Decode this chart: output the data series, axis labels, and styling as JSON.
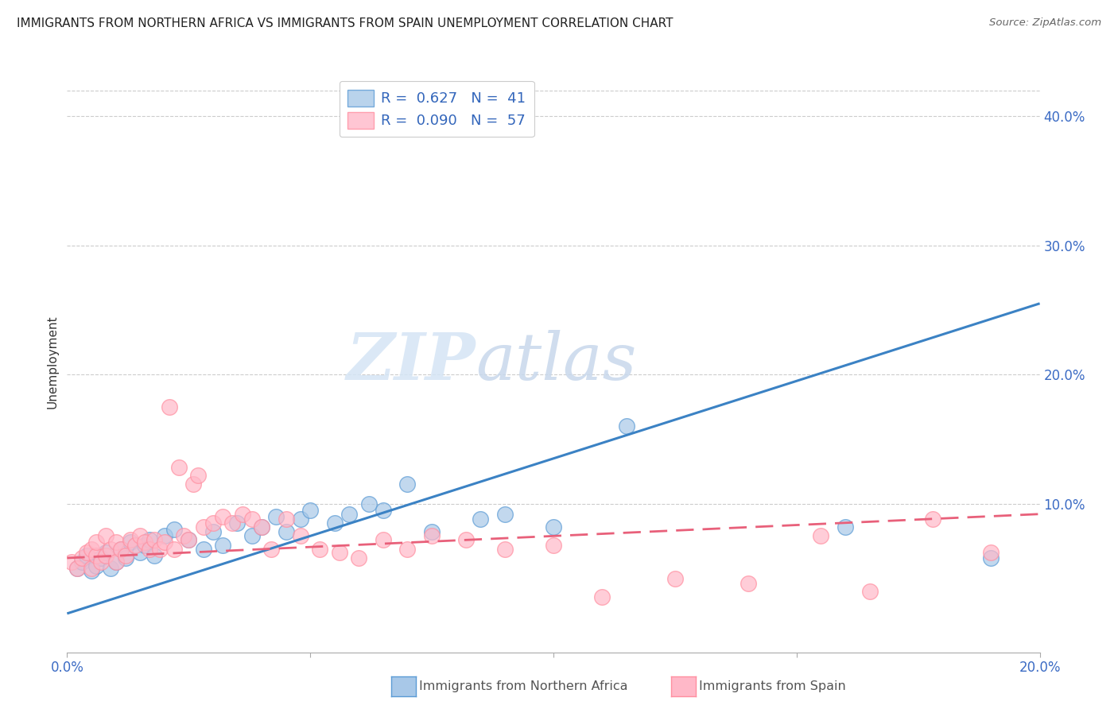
{
  "title": "IMMIGRANTS FROM NORTHERN AFRICA VS IMMIGRANTS FROM SPAIN UNEMPLOYMENT CORRELATION CHART",
  "source": "Source: ZipAtlas.com",
  "ylabel": "Unemployment",
  "yticks": [
    0.0,
    0.1,
    0.2,
    0.3,
    0.4
  ],
  "ytick_labels": [
    "",
    "10.0%",
    "20.0%",
    "30.0%",
    "40.0%"
  ],
  "xlim": [
    0.0,
    0.2
  ],
  "ylim": [
    -0.015,
    0.435
  ],
  "blue_color": "#A8C8E8",
  "pink_color": "#FFB8C8",
  "blue_edge_color": "#5B9BD5",
  "pink_edge_color": "#FF8FA0",
  "blue_line_color": "#3B82C4",
  "pink_line_color": "#E8607A",
  "blue_scatter_x": [
    0.002,
    0.003,
    0.004,
    0.005,
    0.006,
    0.007,
    0.008,
    0.009,
    0.01,
    0.011,
    0.012,
    0.013,
    0.015,
    0.016,
    0.017,
    0.018,
    0.02,
    0.022,
    0.025,
    0.028,
    0.03,
    0.032,
    0.035,
    0.038,
    0.04,
    0.043,
    0.045,
    0.048,
    0.05,
    0.055,
    0.058,
    0.062,
    0.065,
    0.07,
    0.075,
    0.085,
    0.09,
    0.1,
    0.115,
    0.16,
    0.19
  ],
  "blue_scatter_y": [
    0.05,
    0.055,
    0.06,
    0.048,
    0.052,
    0.058,
    0.062,
    0.05,
    0.055,
    0.065,
    0.058,
    0.07,
    0.062,
    0.068,
    0.072,
    0.06,
    0.075,
    0.08,
    0.072,
    0.065,
    0.078,
    0.068,
    0.085,
    0.075,
    0.082,
    0.09,
    0.078,
    0.088,
    0.095,
    0.085,
    0.092,
    0.1,
    0.095,
    0.115,
    0.078,
    0.088,
    0.092,
    0.082,
    0.16,
    0.082,
    0.058
  ],
  "pink_scatter_x": [
    0.001,
    0.002,
    0.003,
    0.004,
    0.005,
    0.005,
    0.006,
    0.006,
    0.007,
    0.008,
    0.008,
    0.009,
    0.01,
    0.01,
    0.011,
    0.012,
    0.013,
    0.014,
    0.015,
    0.016,
    0.017,
    0.018,
    0.019,
    0.02,
    0.021,
    0.022,
    0.023,
    0.024,
    0.025,
    0.026,
    0.027,
    0.028,
    0.03,
    0.032,
    0.034,
    0.036,
    0.038,
    0.04,
    0.042,
    0.045,
    0.048,
    0.052,
    0.056,
    0.06,
    0.065,
    0.07,
    0.075,
    0.082,
    0.09,
    0.1,
    0.11,
    0.125,
    0.14,
    0.155,
    0.165,
    0.178,
    0.19
  ],
  "pink_scatter_y": [
    0.055,
    0.05,
    0.058,
    0.062,
    0.05,
    0.065,
    0.06,
    0.07,
    0.055,
    0.06,
    0.075,
    0.065,
    0.055,
    0.07,
    0.065,
    0.06,
    0.072,
    0.068,
    0.075,
    0.07,
    0.065,
    0.072,
    0.065,
    0.07,
    0.175,
    0.065,
    0.128,
    0.075,
    0.072,
    0.115,
    0.122,
    0.082,
    0.085,
    0.09,
    0.085,
    0.092,
    0.088,
    0.082,
    0.065,
    0.088,
    0.075,
    0.065,
    0.062,
    0.058,
    0.072,
    0.065,
    0.075,
    0.072,
    0.065,
    0.068,
    0.028,
    0.042,
    0.038,
    0.075,
    0.032,
    0.088,
    0.062
  ],
  "blue_trend_x": [
    0.0,
    0.2
  ],
  "blue_trend_y": [
    0.015,
    0.255
  ],
  "pink_trend_x": [
    0.0,
    0.2
  ],
  "pink_trend_y": [
    0.058,
    0.092
  ],
  "watermark_zip": "ZIP",
  "watermark_atlas": "atlas",
  "legend_label1": "R =  0.627   N =  41",
  "legend_label2": "R =  0.090   N =  57",
  "bottom_label1": "Immigrants from Northern Africa",
  "bottom_label2": "Immigrants from Spain"
}
